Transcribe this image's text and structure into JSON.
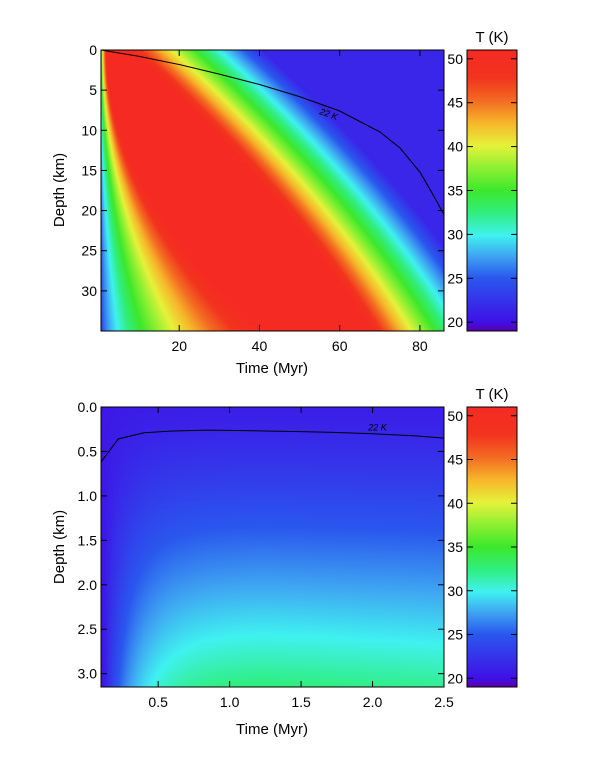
{
  "chart_data": [
    {
      "type": "heatmap",
      "xlabel": "Time (Myr)",
      "ylabel": "Depth (km)",
      "xlim": [
        0.5,
        86
      ],
      "ylim": [
        35,
        0
      ],
      "xticks": [
        20,
        40,
        60,
        80
      ],
      "xtick_labels": [
        "20",
        "40",
        "60",
        "80"
      ],
      "yticks": [
        0,
        5,
        10,
        15,
        20,
        25,
        30
      ],
      "ytick_labels": [
        "0",
        "5",
        "10",
        "15",
        "20",
        "25",
        "30"
      ],
      "colorbar": {
        "label": "T (K)",
        "range": [
          19,
          51
        ],
        "ticks": [
          20,
          25,
          30,
          35,
          40,
          45,
          50
        ],
        "tick_labels": [
          "20",
          "25",
          "30",
          "35",
          "40",
          "45",
          "50"
        ]
      },
      "contour": {
        "label": "22 K",
        "value": 22,
        "x": [
          0.5,
          10,
          20,
          30,
          40,
          50,
          60,
          70,
          75,
          80,
          83,
          86
        ],
        "y": [
          0,
          0.8,
          1.8,
          3.0,
          4.3,
          5.8,
          7.6,
          10.2,
          12.2,
          15.2,
          17.8,
          20.5
        ]
      }
    },
    {
      "type": "heatmap",
      "xlabel": "Time (Myr)",
      "ylabel": "Depth (km)",
      "xlim": [
        0.1,
        2.5
      ],
      "ylim": [
        3.15,
        0
      ],
      "xticks": [
        0.5,
        1.0,
        1.5,
        2.0,
        2.5
      ],
      "xtick_labels": [
        "0.5",
        "1.0",
        "1.5",
        "2.0",
        "2.5"
      ],
      "yticks": [
        0.0,
        0.5,
        1.0,
        1.5,
        2.0,
        2.5,
        3.0
      ],
      "ytick_labels": [
        "0.0",
        "0.5",
        "1.0",
        "1.5",
        "2.0",
        "2.5",
        "3.0"
      ],
      "colorbar": {
        "label": "T (K)",
        "range": [
          19,
          51
        ],
        "ticks": [
          20,
          25,
          30,
          35,
          40,
          45,
          50
        ],
        "tick_labels": [
          "20",
          "25",
          "30",
          "35",
          "40",
          "45",
          "50"
        ]
      },
      "contour": {
        "label": "22 K",
        "value": 22,
        "x": [
          0.1,
          0.22,
          0.4,
          0.6,
          0.85,
          1.1,
          1.4,
          1.7,
          2.0,
          2.3,
          2.5
        ],
        "y": [
          0.62,
          0.36,
          0.29,
          0.27,
          0.26,
          0.265,
          0.275,
          0.285,
          0.3,
          0.325,
          0.35
        ]
      }
    }
  ]
}
